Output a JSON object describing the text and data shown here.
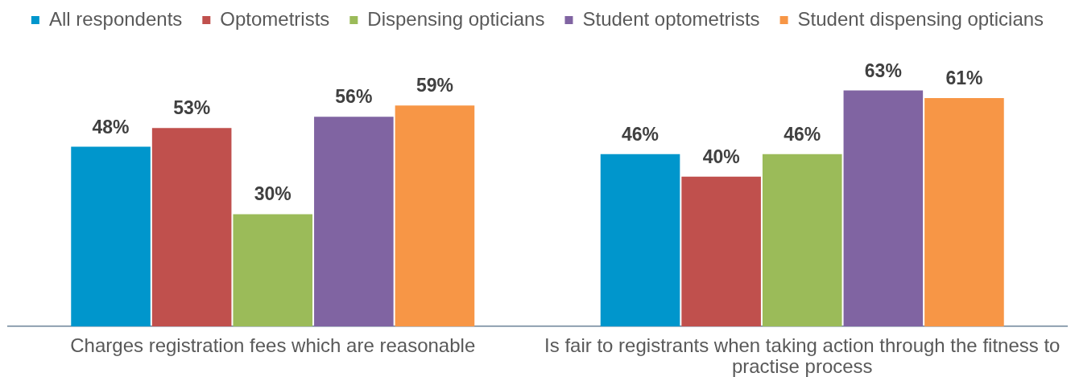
{
  "chart_data": {
    "type": "bar",
    "categories": [
      "Charges registration fees which are reasonable",
      "Is fair to registrants when taking action through the fitness to practise process"
    ],
    "series": [
      {
        "name": "All respondents",
        "color": "#0096cc",
        "values": [
          48,
          46
        ],
        "value_labels": [
          "48%",
          "46%"
        ]
      },
      {
        "name": "Optometrists",
        "color": "#c0504d",
        "values": [
          53,
          40
        ],
        "value_labels": [
          "53%",
          "40%"
        ]
      },
      {
        "name": "Dispensing opticians",
        "color": "#9bbb59",
        "values": [
          30,
          46
        ],
        "value_labels": [
          "30%",
          "46%"
        ]
      },
      {
        "name": "Student optometrists",
        "color": "#8064a2",
        "values": [
          56,
          63
        ],
        "value_labels": [
          "56%",
          "63%"
        ]
      },
      {
        "name": "Student dispensing opticians",
        "color": "#f79646",
        "values": [
          59,
          61
        ],
        "value_labels": [
          "59%",
          "61%"
        ]
      }
    ],
    "tick_labels": "x",
    "legend": "top"
  }
}
